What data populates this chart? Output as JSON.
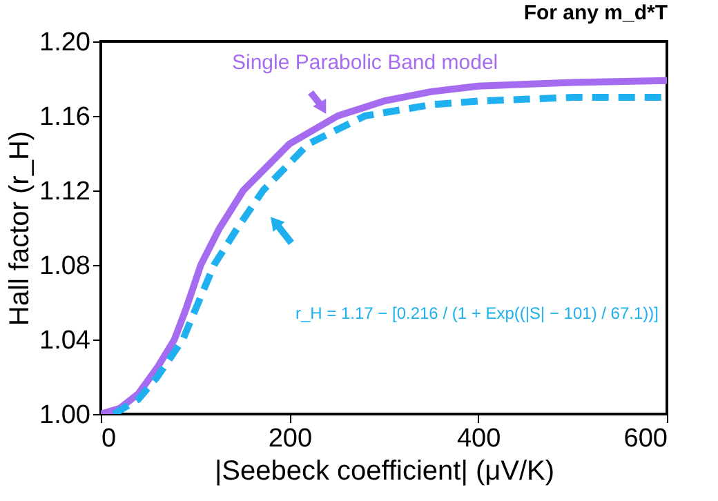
{
  "chart_data": {
    "type": "line",
    "title": "For any m_d*T",
    "xlabel": "|Seebeck coefficient| (μV/K)",
    "ylabel": "Hall factor (r_H)",
    "xlim": [
      0,
      600
    ],
    "xticks": [
      0,
      200,
      400,
      600
    ],
    "ylim": [
      1.0,
      1.2
    ],
    "yticks": [
      {
        "value": 1.0,
        "label": "1.00"
      },
      1.04,
      1.08,
      1.12,
      1.16,
      {
        "value": 1.2,
        "label": "1.20"
      }
    ],
    "grid": false,
    "series": [
      {
        "name": "Single Parabolic Band model",
        "color": "#a66cf0",
        "line_style": "solid",
        "x": [
          0,
          20,
          40,
          60,
          78,
          90,
          106,
          125,
          151,
          200,
          251,
          300,
          350,
          400,
          500,
          600
        ],
        "values": [
          1.0,
          1.003,
          1.011,
          1.025,
          1.04,
          1.056,
          1.08,
          1.099,
          1.12,
          1.145,
          1.16,
          1.168,
          1.173,
          1.176,
          1.178,
          1.179
        ]
      },
      {
        "color": "#1fb0f0",
        "line_style": "dashed",
        "x": [
          14,
          40,
          60,
          87,
          120,
          145,
          172,
          220,
          280,
          350,
          400,
          500,
          600
        ],
        "values": [
          1.0,
          1.008,
          1.02,
          1.04,
          1.08,
          1.1,
          1.12,
          1.145,
          1.16,
          1.166,
          1.168,
          1.17,
          1.17
        ]
      }
    ],
    "annotations": [
      "r_H = 1.17 − [0.216 / (1 + Exp((|S| − 101) / 67.1))]"
    ]
  }
}
